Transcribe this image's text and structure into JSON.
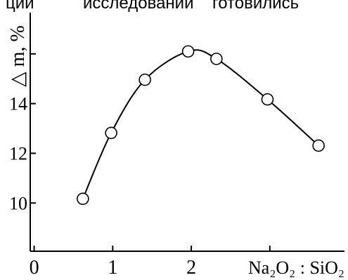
{
  "page_text": [
    "ции",
    "исследовании",
    "готовились"
  ],
  "chart_data": {
    "type": "scatter",
    "ylabel": "△ m, %",
    "xlabel": "Na₂O₂ : SiO₂",
    "x": [
      0.62,
      0.98,
      1.41,
      1.96,
      2.32,
      2.97,
      3.62
    ],
    "values": [
      10.17,
      12.82,
      14.96,
      16.1,
      15.8,
      14.17,
      12.31
    ],
    "xlim": [
      -0.05,
      3.95
    ],
    "ylim": [
      8.06,
      17.66
    ],
    "xticks": [
      0,
      1,
      2,
      {
        "value": 3,
        "label": null
      }
    ],
    "yticks": [
      10,
      12,
      14,
      {
        "value": 16,
        "label": null
      }
    ],
    "smooth_curve": true,
    "color": "#000000"
  }
}
